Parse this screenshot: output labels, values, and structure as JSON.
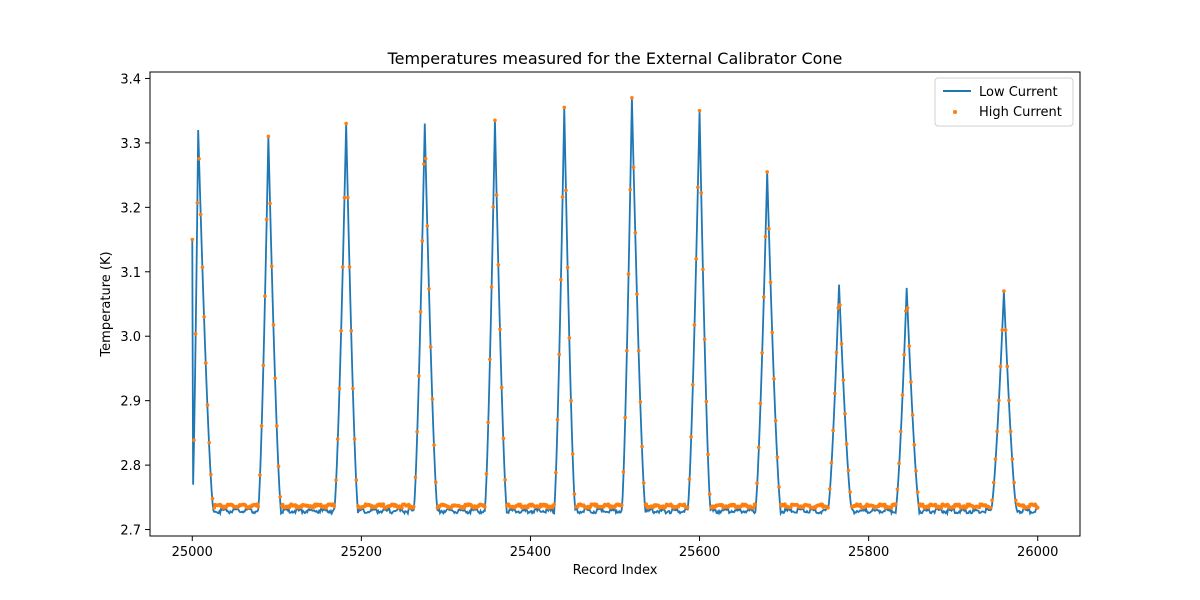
{
  "chart_data": {
    "type": "line",
    "title": "Temperatures measured for the External Calibrator Cone",
    "xlabel": "Record Index",
    "ylabel": "Temperature (K)",
    "xlim": [
      24950,
      26050
    ],
    "ylim": [
      2.69,
      3.41
    ],
    "xticks": [
      25000,
      25200,
      25400,
      25600,
      25800,
      26000
    ],
    "yticks": [
      2.7,
      2.8,
      2.9,
      3.0,
      3.1,
      3.2,
      3.3,
      3.4
    ],
    "grid": false,
    "legend": {
      "position": "top-right",
      "entries": [
        "Low Current",
        "High Current"
      ]
    },
    "series": [
      {
        "name": "Low Current",
        "style": "line",
        "color": "#1f77b4",
        "baseline": 2.731,
        "record_range": [
          25000,
          26000
        ]
      },
      {
        "name": "High Current",
        "style": "scatter",
        "color": "#ff7f0e",
        "baseline": 2.738,
        "record_range": [
          25000,
          26000
        ]
      }
    ],
    "pulses": [
      {
        "peak_index": 25007,
        "peak_temperature": 3.32,
        "low_start": 25000,
        "low_end": 25025
      },
      {
        "peak_index": 25090,
        "peak_temperature": 3.31,
        "low_start": 25078,
        "low_end": 25105
      },
      {
        "peak_index": 25182,
        "peak_temperature": 3.33,
        "low_start": 25168,
        "low_end": 25196
      },
      {
        "peak_index": 25275,
        "peak_temperature": 3.33,
        "low_start": 25262,
        "low_end": 25290
      },
      {
        "peak_index": 25358,
        "peak_temperature": 3.335,
        "low_start": 25346,
        "low_end": 25372
      },
      {
        "peak_index": 25440,
        "peak_temperature": 3.355,
        "low_start": 25428,
        "low_end": 25453
      },
      {
        "peak_index": 25520,
        "peak_temperature": 3.37,
        "low_start": 25508,
        "low_end": 25536
      },
      {
        "peak_index": 25600,
        "peak_temperature": 3.35,
        "low_start": 25586,
        "low_end": 25613
      },
      {
        "peak_index": 25680,
        "peak_temperature": 3.255,
        "low_start": 25666,
        "low_end": 25696
      },
      {
        "peak_index": 25765,
        "peak_temperature": 3.08,
        "low_start": 25752,
        "low_end": 25780
      },
      {
        "peak_index": 25845,
        "peak_temperature": 3.075,
        "low_start": 25832,
        "low_end": 25860
      },
      {
        "peak_index": 25960,
        "peak_temperature": 3.07,
        "low_start": 25945,
        "low_end": 25975
      }
    ]
  }
}
